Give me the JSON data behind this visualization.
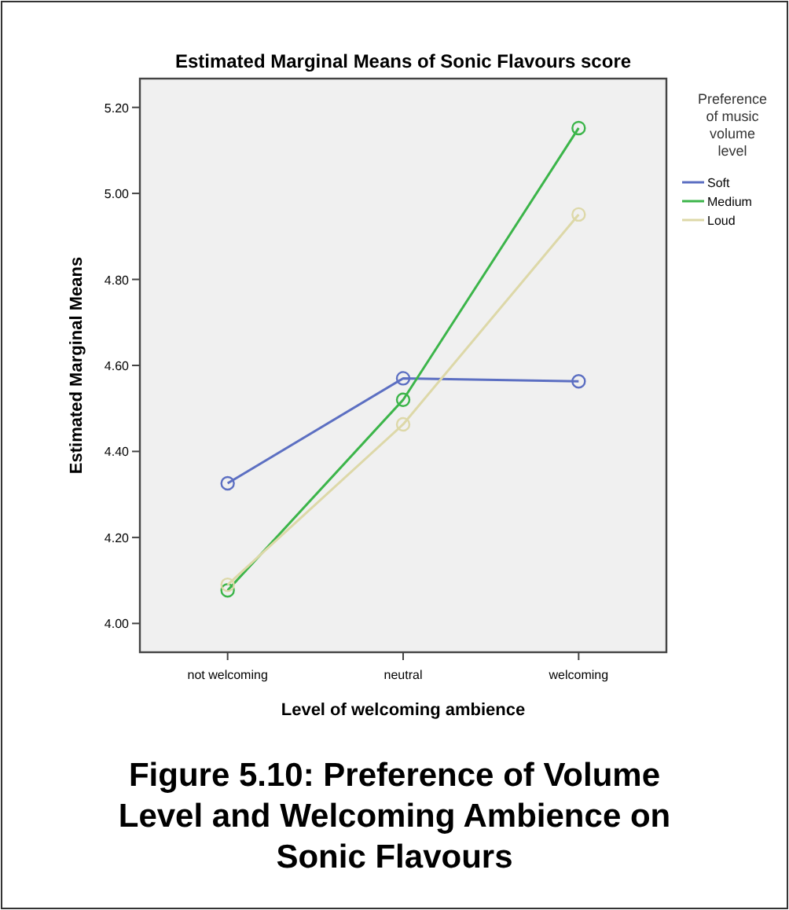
{
  "chart_data": {
    "type": "line",
    "title": "Estimated Marginal Means of Sonic Flavours score",
    "xlabel": "Level of welcoming ambience",
    "ylabel": "Estimated Marginal Means",
    "legend_title": "Preference of music volume level",
    "categories": [
      "not welcoming",
      "neutral",
      "welcoming"
    ],
    "series": [
      {
        "name": "Soft",
        "color": "#5c6fc2",
        "values": [
          4.326,
          4.57,
          4.563
        ]
      },
      {
        "name": "Medium",
        "color": "#3cb54a",
        "values": [
          4.077,
          4.52,
          5.152
        ]
      },
      {
        "name": "Loud",
        "color": "#ddd8a8",
        "values": [
          4.09,
          4.463,
          4.951
        ]
      }
    ],
    "ylim": [
      3.933,
      5.267
    ],
    "yticks": [
      {
        "value": 4,
        "label": "4.00"
      },
      {
        "value": 4.2,
        "label": "4.20"
      },
      {
        "value": 4.4,
        "label": "4.40"
      },
      {
        "value": 4.6,
        "label": "4.60"
      },
      {
        "value": 4.8,
        "label": "4.80"
      },
      {
        "value": 5,
        "label": "5.00"
      },
      {
        "value": 5.2,
        "label": "5.20"
      }
    ],
    "grid": false,
    "legend": "right",
    "marker": "circle",
    "line_style": "solid",
    "annotations": [
      "Figure 5.10: Preference of Volume Level and Welcoming Ambience on Sonic Flavours"
    ]
  }
}
